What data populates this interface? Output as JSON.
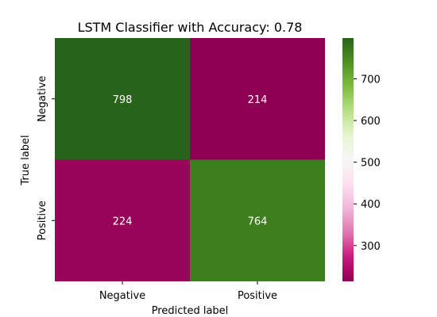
{
  "chart_data": {
    "type": "heatmap",
    "title": "LSTM Classifier with Accuracy: 0.78",
    "xlabel": "Predicted label",
    "ylabel": "True label",
    "x_categories": [
      "Negative",
      "Positive"
    ],
    "y_categories": [
      "Negative",
      "Positive"
    ],
    "values": [
      [
        798,
        214
      ],
      [
        224,
        764
      ]
    ],
    "annotation_color": "#ffffff",
    "colormap": "PiYG",
    "color_range": [
      214,
      798
    ],
    "colorbar_ticks": [
      300,
      400,
      500,
      600,
      700
    ],
    "colorbar_tick_labels": [
      "300",
      "400",
      "500",
      "600",
      "700"
    ],
    "grid": false,
    "legend": "colorbar-right"
  }
}
